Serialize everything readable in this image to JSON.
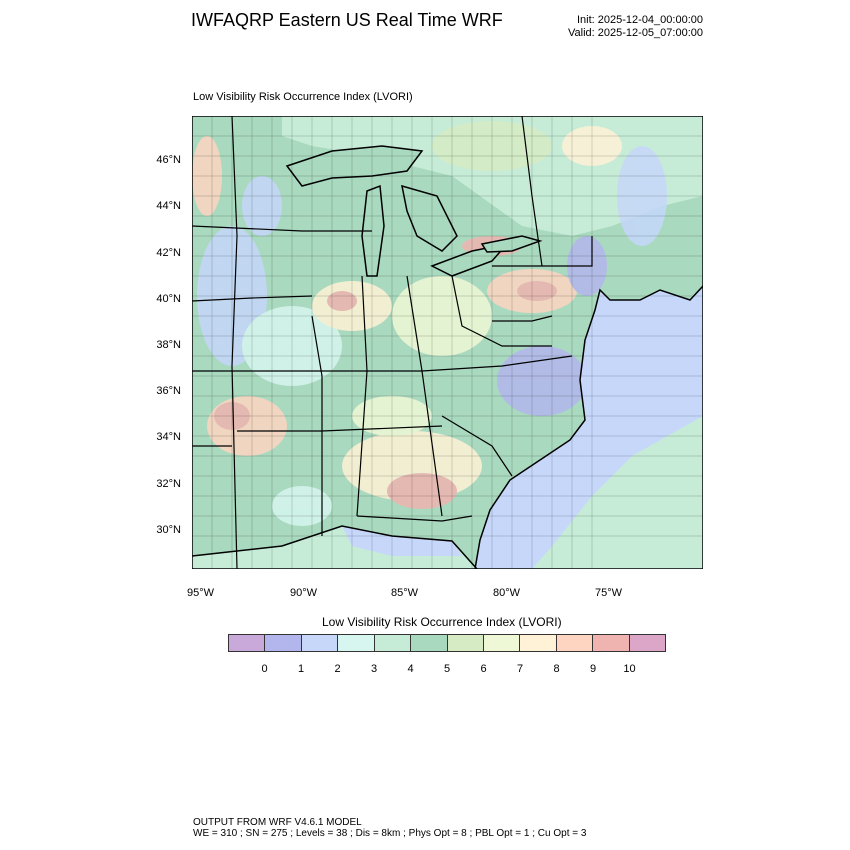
{
  "header": {
    "title": "IWFAQRP Eastern US Real Time WRF",
    "init": "Init: 2025-12-04_00:00:00",
    "valid": "Valid: 2025-12-05_07:00:00"
  },
  "field_title": "Low Visibility Risk Occurrence Index   (LVORI)",
  "map": {
    "lat_labels": [
      "46°N",
      "44°N",
      "42°N",
      "40°N",
      "38°N",
      "36°N",
      "34°N",
      "32°N",
      "30°N"
    ],
    "lon_labels": [
      "95°W",
      "90°W",
      "85°W",
      "80°W",
      "75°W"
    ],
    "ocean_color": "#c6d7fa",
    "land_base_color": "#a9d9bf"
  },
  "colorbar": {
    "title": "Low Visibility Risk Occurrence Index  (LVORI)",
    "colors": [
      "#c9a8da",
      "#b3b6ec",
      "#c6d7fa",
      "#d6f6ef",
      "#c6ecd7",
      "#a9d9bf",
      "#d6ebc4",
      "#eff8d6",
      "#fff2d6",
      "#fdd5c1",
      "#efb4b0",
      "#dca6c8"
    ],
    "labels": [
      "0",
      "1",
      "2",
      "3",
      "4",
      "5",
      "6",
      "7",
      "8",
      "9",
      "10"
    ]
  },
  "footer": {
    "line1": "OUTPUT FROM WRF V4.6.1 MODEL",
    "line2": "WE = 310 ; SN = 275 ; Levels = 38 ; Dis = 8km ; Phys Opt = 8 ; PBL Opt = 1 ; Cu Opt = 3"
  }
}
